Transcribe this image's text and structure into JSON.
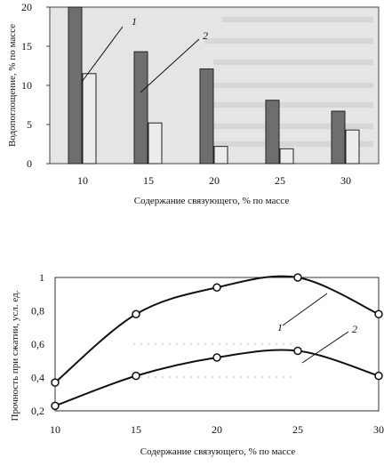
{
  "chart_data": [
    {
      "type": "bar",
      "categories": [
        "10",
        "15",
        "20",
        "25",
        "30"
      ],
      "series": [
        {
          "label": "1",
          "values": [
            20,
            14.3,
            12.1,
            8.1,
            6.7
          ]
        },
        {
          "label": "2",
          "values": [
            11.5,
            5.2,
            2.2,
            1.9,
            4.3
          ]
        }
      ],
      "yticks": [
        "0",
        "5",
        "10",
        "15",
        "20"
      ],
      "ylim": [
        0,
        20
      ],
      "xlabel": "Содержание связующего, % по массе",
      "ylabel": "Водопоглощение, % по массе",
      "colors": {
        "series1": "#6e6e6e",
        "series2": "#ececec",
        "plot_bg": "#e5e5e5"
      }
    },
    {
      "type": "line",
      "x": [
        10,
        15,
        20,
        25,
        30
      ],
      "series": [
        {
          "label": "1",
          "values": [
            0.37,
            0.78,
            0.94,
            1.0,
            0.78
          ]
        },
        {
          "label": "2",
          "values": [
            0.23,
            0.41,
            0.52,
            0.56,
            0.41
          ]
        }
      ],
      "xticks": [
        "10",
        "15",
        "20",
        "25",
        "30"
      ],
      "yticks": [
        "0,2",
        "0,4",
        "0,6",
        "0,8",
        "1"
      ],
      "ylim": [
        0.2,
        1.0
      ],
      "xlim": [
        10,
        30
      ],
      "xlabel": "Содержание связующего, % по массе",
      "ylabel": "Прочность при сжатии, усл. ед."
    }
  ]
}
